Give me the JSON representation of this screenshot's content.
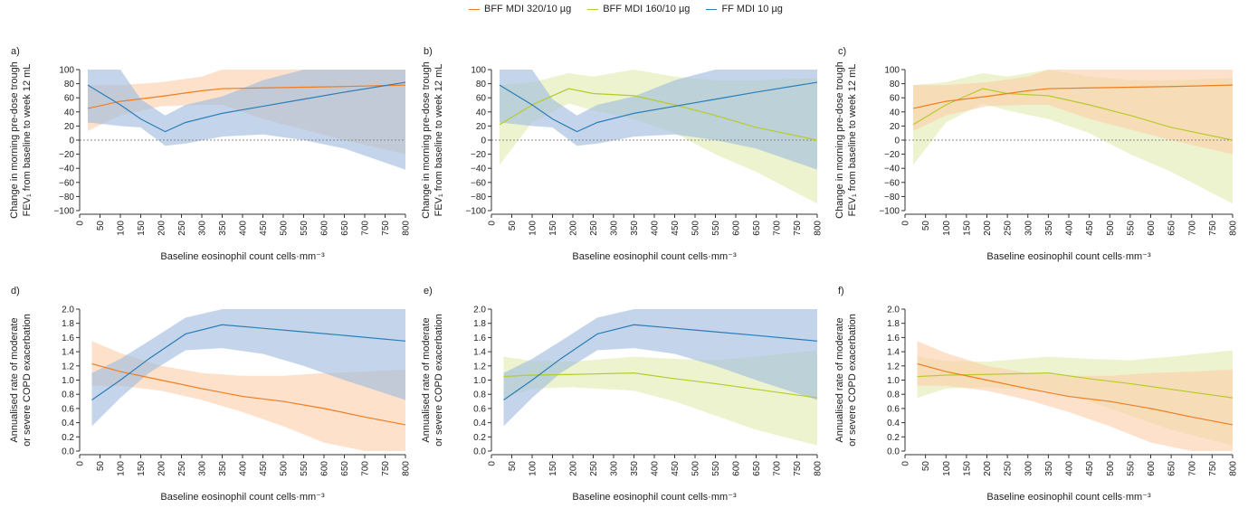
{
  "legend": [
    {
      "name": "BFF MDI 320/10 µg",
      "color": "#ee7d22"
    },
    {
      "name": "BFF MDI 160/10 µg",
      "color": "#b5cc2a"
    },
    {
      "name": "FF MDI 10 µg",
      "color": "#2a7db8"
    }
  ],
  "band_colors": {
    "BFF MDI 320/10 µg": "#fbcfa9",
    "BFF MDI 160/10 µg": "#e2ecb0",
    "FF MDI 10 µg": "#9fbcdf"
  },
  "chart_data": [
    {
      "panel": "a)",
      "type": "line",
      "xlabel": "Baseline eosinophil count cells·mm⁻³",
      "ylabel_line1": "Change in morning pre-dose trough",
      "ylabel_line2": "FEV₁ from baseline to week 12 mL",
      "xlim": [
        0,
        800
      ],
      "ylim": [
        -100,
        100
      ],
      "xticks": [
        0,
        50,
        100,
        150,
        200,
        250,
        300,
        350,
        400,
        450,
        500,
        550,
        600,
        650,
        700,
        750,
        800
      ],
      "yticks": [
        -100,
        -80,
        -60,
        -40,
        -20,
        0,
        20,
        40,
        60,
        80,
        100
      ],
      "reference_line": 0,
      "series": [
        {
          "name": "BFF MDI 320/10 µg",
          "x": [
            20,
            100,
            200,
            300,
            350,
            450,
            550,
            650,
            800
          ],
          "y": [
            45,
            55,
            62,
            70,
            73,
            74,
            75,
            76,
            78
          ],
          "lower": [
            13,
            35,
            48,
            50,
            50,
            30,
            15,
            0,
            -20
          ],
          "upper": [
            78,
            78,
            82,
            90,
            100,
            100,
            100,
            100,
            100
          ]
        },
        {
          "name": "FF MDI 10 µg",
          "x": [
            20,
            100,
            150,
            210,
            260,
            350,
            450,
            550,
            650,
            800
          ],
          "y": [
            78,
            50,
            30,
            12,
            25,
            38,
            48,
            58,
            68,
            82
          ],
          "lower": [
            25,
            20,
            18,
            -8,
            -5,
            5,
            8,
            0,
            -12,
            -42
          ],
          "upper": [
            100,
            100,
            58,
            35,
            50,
            62,
            85,
            100,
            100,
            100
          ]
        }
      ]
    },
    {
      "panel": "b)",
      "type": "line",
      "xlabel": "Baseline eosinophil count cells·mm⁻³",
      "ylabel_line1": "Change in morning pre-dose trough",
      "ylabel_line2": "FEV₁ from baseline to week 12 mL",
      "xlim": [
        0,
        800
      ],
      "ylim": [
        -100,
        100
      ],
      "xticks": [
        0,
        50,
        100,
        150,
        200,
        250,
        300,
        350,
        400,
        450,
        500,
        550,
        600,
        650,
        700,
        750,
        800
      ],
      "yticks": [
        -100,
        -80,
        -60,
        -40,
        -20,
        0,
        20,
        40,
        60,
        80,
        100
      ],
      "reference_line": 0,
      "series": [
        {
          "name": "BFF MDI 160/10 µg",
          "x": [
            20,
            100,
            190,
            250,
            350,
            450,
            550,
            650,
            800
          ],
          "y": [
            22,
            50,
            73,
            66,
            63,
            50,
            35,
            18,
            0
          ],
          "lower": [
            -35,
            25,
            52,
            42,
            30,
            10,
            -20,
            -45,
            -90
          ],
          "upper": [
            78,
            82,
            95,
            90,
            100,
            90,
            85,
            85,
            88
          ]
        },
        {
          "name": "FF MDI 10 µg",
          "x": [
            20,
            100,
            150,
            210,
            260,
            350,
            450,
            550,
            650,
            800
          ],
          "y": [
            78,
            50,
            30,
            12,
            25,
            38,
            48,
            58,
            68,
            82
          ],
          "lower": [
            25,
            20,
            18,
            -8,
            -5,
            5,
            8,
            0,
            -12,
            -42
          ],
          "upper": [
            100,
            100,
            58,
            35,
            50,
            62,
            85,
            100,
            100,
            100
          ]
        }
      ]
    },
    {
      "panel": "c)",
      "type": "line",
      "xlabel": "Baseline eosinophil count cells·mm⁻³",
      "ylabel_line1": "Change in morning pre-dose trough",
      "ylabel_line2": "FEV₁ from baseline to week 12 mL",
      "xlim": [
        0,
        800
      ],
      "ylim": [
        -100,
        100
      ],
      "xticks": [
        0,
        50,
        100,
        150,
        200,
        250,
        300,
        350,
        400,
        450,
        500,
        550,
        600,
        650,
        700,
        750,
        800
      ],
      "yticks": [
        -100,
        -80,
        -60,
        -40,
        -20,
        0,
        20,
        40,
        60,
        80,
        100
      ],
      "reference_line": 0,
      "series": [
        {
          "name": "BFF MDI 160/10 µg",
          "x": [
            20,
            100,
            190,
            250,
            350,
            450,
            550,
            650,
            800
          ],
          "y": [
            22,
            50,
            73,
            66,
            63,
            50,
            35,
            18,
            0
          ],
          "lower": [
            -35,
            25,
            52,
            42,
            30,
            10,
            -20,
            -45,
            -90
          ],
          "upper": [
            78,
            82,
            95,
            90,
            100,
            90,
            85,
            85,
            88
          ]
        },
        {
          "name": "BFF MDI 320/10 µg",
          "x": [
            20,
            100,
            200,
            300,
            350,
            450,
            550,
            650,
            800
          ],
          "y": [
            45,
            55,
            62,
            70,
            73,
            74,
            75,
            76,
            78
          ],
          "lower": [
            13,
            35,
            48,
            50,
            50,
            30,
            15,
            0,
            -20
          ],
          "upper": [
            78,
            78,
            82,
            90,
            100,
            100,
            100,
            100,
            100
          ]
        }
      ]
    },
    {
      "panel": "d)",
      "type": "line",
      "xlabel": "Baseline eosinophil count cells·mm⁻³",
      "ylabel_line1": "Annualised rate of moderate",
      "ylabel_line2": "or severe COPD exacerbation",
      "xlim": [
        0,
        800
      ],
      "ylim": [
        0,
        2
      ],
      "xticks": [
        0,
        50,
        100,
        150,
        200,
        250,
        300,
        350,
        400,
        450,
        500,
        550,
        600,
        650,
        700,
        750,
        800
      ],
      "yticks": [
        0.0,
        0.2,
        0.4,
        0.6,
        0.8,
        1.0,
        1.2,
        1.4,
        1.6,
        1.8,
        2.0
      ],
      "series": [
        {
          "name": "BFF MDI 320/10 µg",
          "x": [
            30,
            100,
            200,
            300,
            400,
            500,
            600,
            700,
            800
          ],
          "y": [
            1.23,
            1.12,
            1.0,
            0.88,
            0.77,
            0.7,
            0.6,
            0.48,
            0.37
          ],
          "lower": [
            0.92,
            0.92,
            0.85,
            0.72,
            0.55,
            0.35,
            0.12,
            0.0,
            0.0
          ],
          "upper": [
            1.55,
            1.38,
            1.2,
            1.1,
            1.06,
            1.06,
            1.1,
            1.12,
            1.15
          ]
        },
        {
          "name": "FF MDI 10 µg",
          "x": [
            30,
            100,
            170,
            260,
            350,
            450,
            550,
            650,
            800
          ],
          "y": [
            0.72,
            1.0,
            1.3,
            1.65,
            1.78,
            1.73,
            1.68,
            1.63,
            1.55
          ],
          "lower": [
            0.35,
            0.75,
            1.1,
            1.42,
            1.45,
            1.37,
            1.2,
            1.0,
            0.72
          ],
          "upper": [
            1.1,
            1.3,
            1.55,
            1.88,
            2.0,
            2.0,
            2.0,
            2.0,
            2.0
          ]
        }
      ]
    },
    {
      "panel": "e)",
      "type": "line",
      "xlabel": "Baseline eosinophil count cells·mm⁻³",
      "ylabel_line1": "Annualised rate of moderate",
      "ylabel_line2": "or severe COPD exacerbation",
      "xlim": [
        0,
        800
      ],
      "ylim": [
        0,
        2
      ],
      "xticks": [
        0,
        50,
        100,
        150,
        200,
        250,
        300,
        350,
        400,
        450,
        500,
        550,
        600,
        650,
        700,
        750,
        800
      ],
      "yticks": [
        0.0,
        0.2,
        0.4,
        0.6,
        0.8,
        1.0,
        1.2,
        1.4,
        1.6,
        1.8,
        2.0
      ],
      "series": [
        {
          "name": "BFF MDI 160/10 µg",
          "x": [
            30,
            100,
            200,
            350,
            450,
            550,
            650,
            800
          ],
          "y": [
            1.05,
            1.07,
            1.08,
            1.1,
            1.02,
            0.95,
            0.87,
            0.75
          ],
          "lower": [
            0.75,
            0.88,
            0.9,
            0.85,
            0.7,
            0.5,
            0.3,
            0.08
          ],
          "upper": [
            1.33,
            1.27,
            1.26,
            1.33,
            1.3,
            1.28,
            1.33,
            1.42
          ]
        },
        {
          "name": "FF MDI 10 µg",
          "x": [
            30,
            100,
            170,
            260,
            350,
            450,
            550,
            650,
            800
          ],
          "y": [
            0.72,
            1.0,
            1.3,
            1.65,
            1.78,
            1.73,
            1.68,
            1.63,
            1.55
          ],
          "lower": [
            0.35,
            0.75,
            1.1,
            1.42,
            1.45,
            1.37,
            1.2,
            1.0,
            0.72
          ],
          "upper": [
            1.1,
            1.3,
            1.55,
            1.88,
            2.0,
            2.0,
            2.0,
            2.0,
            2.0
          ]
        }
      ]
    },
    {
      "panel": "f)",
      "type": "line",
      "xlabel": "Baseline eosinophil count cells·mm⁻³",
      "ylabel_line1": "Annualised rate of moderate",
      "ylabel_line2": "or severe COPD exacerbation",
      "xlim": [
        0,
        800
      ],
      "ylim": [
        0,
        2
      ],
      "xticks": [
        0,
        50,
        100,
        150,
        200,
        250,
        300,
        350,
        400,
        450,
        500,
        550,
        600,
        650,
        700,
        750,
        800
      ],
      "yticks": [
        0.0,
        0.2,
        0.4,
        0.6,
        0.8,
        1.0,
        1.2,
        1.4,
        1.6,
        1.8,
        2.0
      ],
      "series": [
        {
          "name": "BFF MDI 160/10 µg",
          "x": [
            30,
            100,
            200,
            350,
            450,
            550,
            650,
            800
          ],
          "y": [
            1.05,
            1.07,
            1.08,
            1.1,
            1.02,
            0.95,
            0.87,
            0.75
          ],
          "lower": [
            0.75,
            0.88,
            0.9,
            0.85,
            0.7,
            0.5,
            0.3,
            0.08
          ],
          "upper": [
            1.33,
            1.27,
            1.26,
            1.33,
            1.3,
            1.28,
            1.33,
            1.42
          ]
        },
        {
          "name": "BFF MDI 320/10 µg",
          "x": [
            30,
            100,
            200,
            300,
            400,
            500,
            600,
            700,
            800
          ],
          "y": [
            1.23,
            1.12,
            1.0,
            0.88,
            0.77,
            0.7,
            0.6,
            0.48,
            0.37
          ],
          "lower": [
            0.92,
            0.92,
            0.85,
            0.72,
            0.55,
            0.35,
            0.12,
            0.0,
            0.0
          ],
          "upper": [
            1.55,
            1.38,
            1.2,
            1.1,
            1.06,
            1.06,
            1.1,
            1.12,
            1.15
          ]
        }
      ]
    }
  ]
}
